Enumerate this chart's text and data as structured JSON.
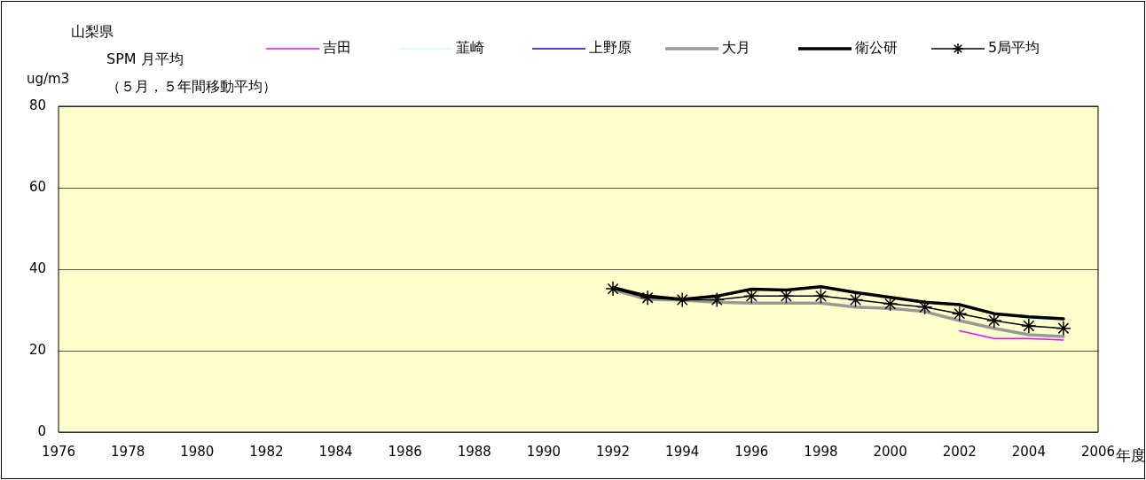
{
  "chart_data": {
    "type": "line",
    "title": "山梨県",
    "subtitle": "SPM 月平均",
    "annotations": [
      "（５月，５年間移動平均）"
    ],
    "ylabel": "ug/m3",
    "xlabel": "年度",
    "x": [
      1992,
      1993,
      1994,
      1995,
      1996,
      1997,
      1998,
      1999,
      2000,
      2001,
      2002,
      2003,
      2004,
      2005
    ],
    "xlim": [
      1976,
      2006
    ],
    "xticks": [
      1976,
      1978,
      1980,
      1982,
      1984,
      1986,
      1988,
      1990,
      1992,
      1994,
      1996,
      1998,
      2000,
      2002,
      2004,
      2006
    ],
    "ylim": [
      0,
      80
    ],
    "yticks": [
      0,
      20,
      40,
      60,
      80
    ],
    "grid": "y",
    "legend": "top",
    "marker": "none",
    "series": [
      {
        "name": "吉田",
        "color": "#ff00ff",
        "values": [
          null,
          null,
          null,
          null,
          null,
          null,
          null,
          null,
          null,
          null,
          24.9,
          23.0,
          23.0,
          22.6
        ]
      },
      {
        "name": "韮崎",
        "color": "#ccffff",
        "values": [
          null,
          null,
          null,
          null,
          null,
          null,
          null,
          null,
          null,
          null,
          null,
          null,
          27.6,
          27.5
        ]
      },
      {
        "name": "上野原",
        "color": "#0000ff",
        "values": [
          null,
          null,
          null,
          null,
          null,
          null,
          null,
          null,
          null,
          null,
          null,
          null,
          null,
          null
        ]
      },
      {
        "name": "大月",
        "color": "#999999",
        "values": [
          35.0,
          32.6,
          32.4,
          31.9,
          31.7,
          31.7,
          31.7,
          30.7,
          30.4,
          29.6,
          27.4,
          25.5,
          23.9,
          23.5
        ]
      },
      {
        "name": "衛公研",
        "color": "#000000",
        "values": [
          35.5,
          33.4,
          32.6,
          33.4,
          35.1,
          34.9,
          35.7,
          34.3,
          33.1,
          31.9,
          31.3,
          29.1,
          28.3,
          27.8
        ]
      },
      {
        "name": "5局平均",
        "color": "#000000",
        "marker": "cross",
        "values": [
          35.2,
          33.0,
          32.5,
          32.5,
          33.4,
          33.4,
          33.4,
          32.5,
          31.5,
          30.7,
          29.1,
          27.4,
          26.1,
          25.5
        ]
      }
    ]
  }
}
